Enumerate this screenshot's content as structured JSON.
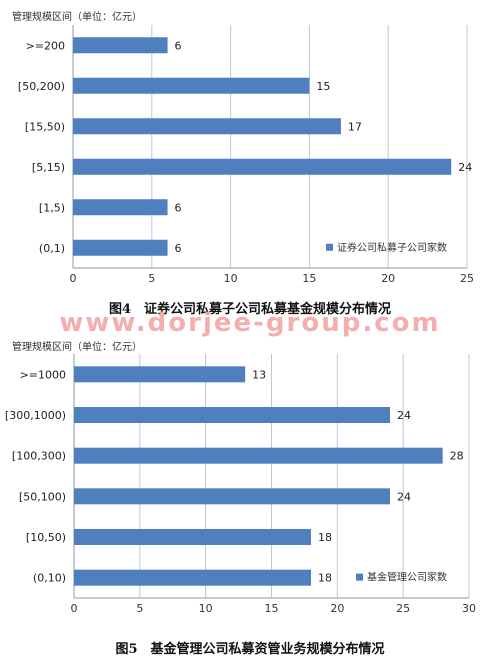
{
  "watermark": "www.dorjee-group.com",
  "chart_data": [
    {
      "type": "bar",
      "orientation": "horizontal",
      "ylabel": "管理规模区间（单位：亿元）",
      "categories": [
        ">=200",
        "[50,200)",
        "[15,50)",
        "[5,15)",
        "[1,5)",
        "(0,1)"
      ],
      "series": [
        {
          "name": "证券公司私募子公司家数",
          "values": [
            6,
            15,
            17,
            24,
            6,
            6
          ]
        }
      ],
      "xlim": [
        0,
        25
      ],
      "xticks": [
        0,
        5,
        10,
        15,
        20,
        25
      ],
      "grid": "vertical",
      "legend": "bottom-right",
      "color": "#4f7fbf",
      "caption": "图4　证券公司私募子公司私募基金规模分布情况"
    },
    {
      "type": "bar",
      "orientation": "horizontal",
      "ylabel": "管理规模区间（单位：亿元）",
      "categories": [
        ">=1000",
        "[300,1000)",
        "[100,300)",
        "[50,100)",
        "[10,50)",
        "(0,10)"
      ],
      "series": [
        {
          "name": "基金管理公司家数",
          "values": [
            13,
            24,
            28,
            24,
            18,
            18
          ]
        }
      ],
      "xlim": [
        0,
        30
      ],
      "xticks": [
        0,
        5,
        10,
        15,
        20,
        25,
        30
      ],
      "grid": "vertical",
      "legend": "bottom-right",
      "color": "#4f7fbf",
      "caption": "图5　基金管理公司私募资管业务规模分布情况"
    }
  ]
}
